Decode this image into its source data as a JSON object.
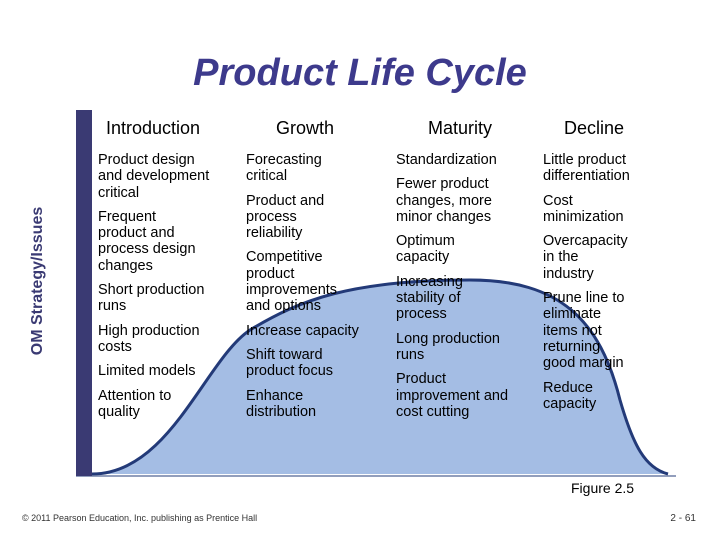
{
  "slide": {
    "title": "Product Life Cycle",
    "side_label": "OM Strategy/Issues",
    "figure_label": "Figure 2.5",
    "footer": "© 2011 Pearson Education, Inc. publishing as Prentice Hall",
    "page_number": "2 - 61"
  },
  "colors": {
    "title": "#3d3a8c",
    "sidebar": "#3a3a73",
    "curve_fill": "#a4bde4",
    "curve_stroke": "#233a78"
  },
  "stages": [
    {
      "name": "Introduction",
      "items": [
        "Product design\nand development\ncritical",
        "Frequent\nproduct and\nprocess design\nchanges",
        "Short production\nruns",
        "High production\ncosts",
        "Limited models",
        "Attention to\nquality"
      ]
    },
    {
      "name": "Growth",
      "items": [
        "Forecasting\ncritical",
        "Product and\nprocess\nreliability",
        "Competitive\nproduct\nimprovements\nand options",
        "Increase capacity",
        "Shift toward\nproduct focus",
        "Enhance\ndistribution"
      ]
    },
    {
      "name": "Maturity",
      "items": [
        "Standardization",
        "Fewer product\nchanges, more\nminor changes",
        "Optimum\ncapacity",
        "Increasing\nstability of\nprocess",
        "Long production\nruns",
        "Product\nimprovement and\ncost cutting"
      ]
    },
    {
      "name": "Decline",
      "items": [
        "Little product\ndifferentiation",
        "Cost\nminimization",
        "Overcapacity\nin the\nindustry",
        "Prune line to\neliminate\nitems not\nreturning\ngood margin",
        "Reduce\ncapacity"
      ]
    }
  ]
}
